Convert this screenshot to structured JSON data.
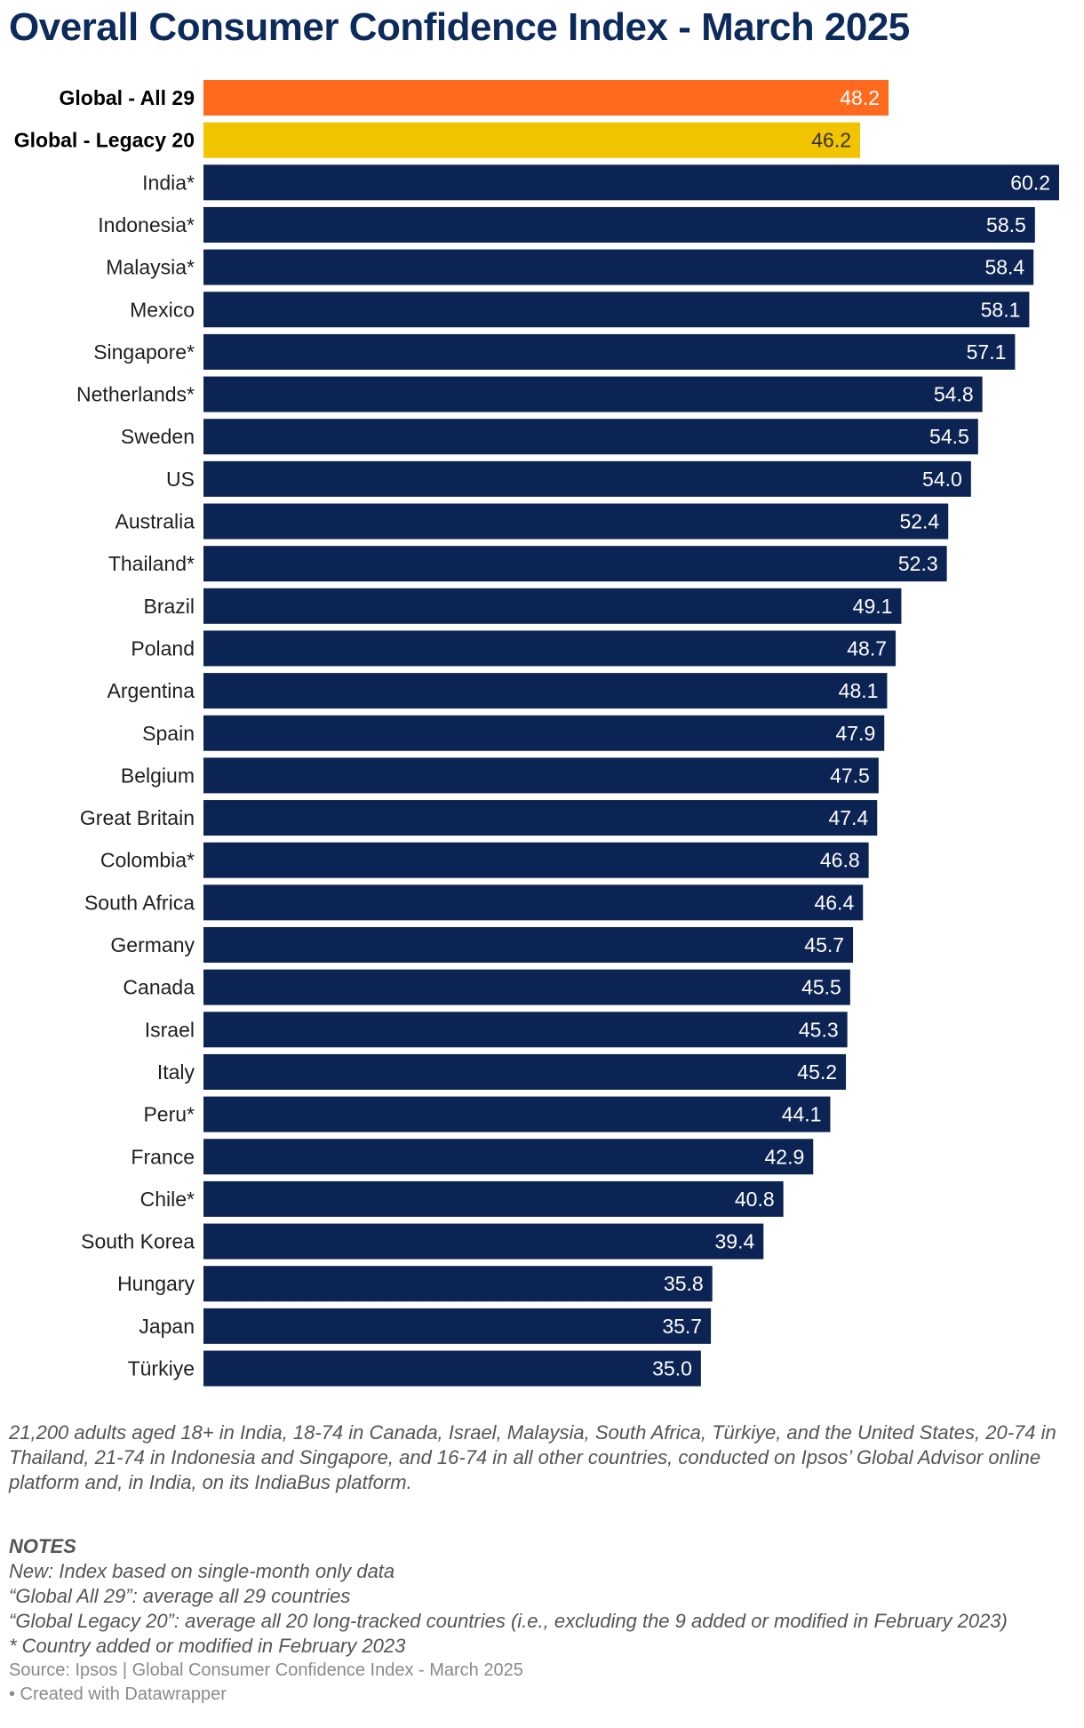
{
  "title": "Overall Consumer Confidence Index - March 2025",
  "colors": {
    "highlight_all": "#ff6a1f",
    "highlight_legacy": "#f2c400",
    "bar": "#0c2454",
    "title": "#0c2a5c"
  },
  "chart_data": {
    "type": "bar",
    "orientation": "horizontal",
    "title": "Overall Consumer Confidence Index - March 2025",
    "xlim": [
      0,
      60.2
    ],
    "categories": [
      "Global - All 29",
      "Global - Legacy 20",
      "India*",
      "Indonesia*",
      "Malaysia*",
      "Mexico",
      "Singapore*",
      "Netherlands*",
      "Sweden",
      "US",
      "Australia",
      "Thailand*",
      "Brazil",
      "Poland",
      "Argentina",
      "Spain",
      "Belgium",
      "Great Britain",
      "Colombia*",
      "South Africa",
      "Germany",
      "Canada",
      "Israel",
      "Italy",
      "Peru*",
      "France",
      "Chile*",
      "South Korea",
      "Hungary",
      "Japan",
      "Türkiye"
    ],
    "values": [
      48.2,
      46.2,
      60.2,
      58.5,
      58.4,
      58.1,
      57.1,
      54.8,
      54.5,
      54.0,
      52.4,
      52.3,
      49.1,
      48.7,
      48.1,
      47.9,
      47.5,
      47.4,
      46.8,
      46.4,
      45.7,
      45.5,
      45.3,
      45.2,
      44.1,
      42.9,
      40.8,
      39.4,
      35.8,
      35.7,
      35.0
    ],
    "value_labels": [
      "48.2",
      "46.2",
      "60.2",
      "58.5",
      "58.4",
      "58.1",
      "57.1",
      "54.8",
      "54.5",
      "54.0",
      "52.4",
      "52.3",
      "49.1",
      "48.7",
      "48.1",
      "47.9",
      "47.5",
      "47.4",
      "46.8",
      "46.4",
      "45.7",
      "45.5",
      "45.3",
      "45.2",
      "44.1",
      "42.9",
      "40.8",
      "39.4",
      "35.8",
      "35.7",
      "35.0"
    ],
    "highlighted": [
      "Global - All 29",
      "Global - Legacy 20"
    ]
  },
  "description": "21,200 adults aged 18+ in India, 18-74 in Canada, Israel, Malaysia, South Africa, Türkiye, and the United States, 20-74 in Thailand, 21-74 in Indonesia and Singapore, and 16-74 in all other countries, conducted on Ipsos’ Global Advisor online platform and, in India, on its IndiaBus platform.",
  "notes": {
    "heading": "NOTES",
    "lines": [
      "New: Index based on single-month only data",
      "“Global All 29”: average all 29 countries",
      "“Global Legacy 20”: average all 20 long-tracked countries (i.e., excluding the 9 added or modified in February 2023)",
      "* Country added or modified in February 2023"
    ]
  },
  "source": "Source: Ipsos | Global Consumer Confidence Index - March 2025",
  "credit": "• Created with Datawrapper"
}
